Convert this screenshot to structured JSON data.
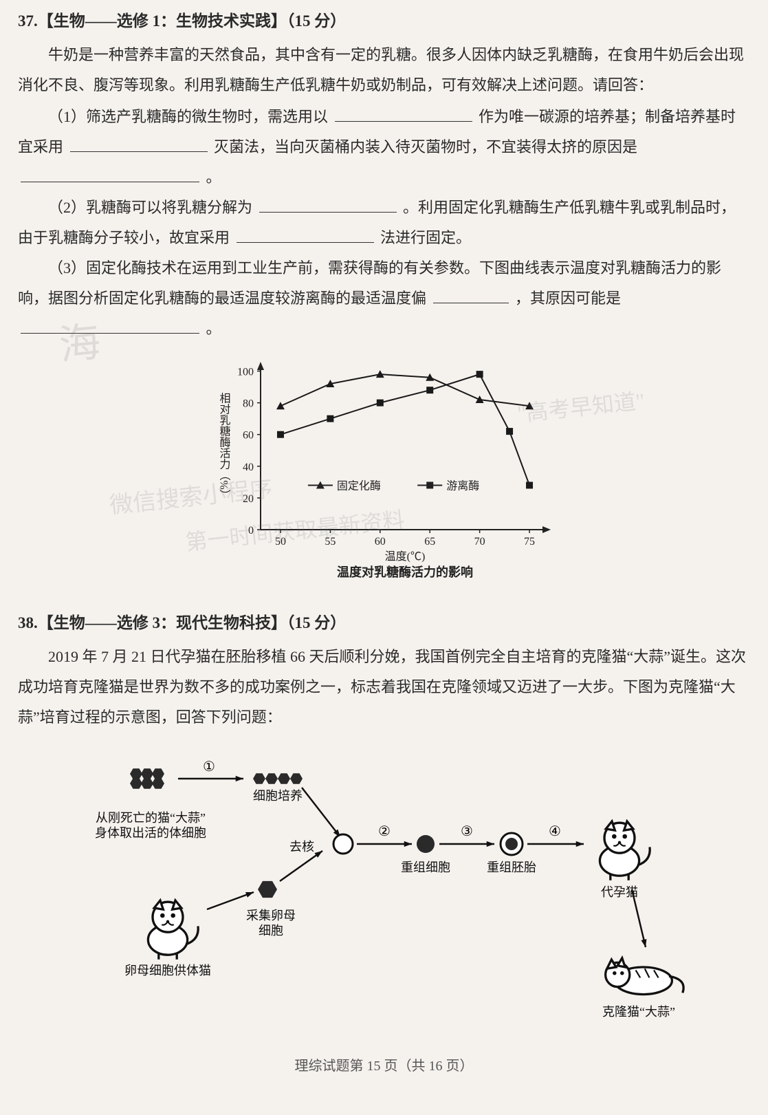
{
  "q37": {
    "header": "37.【生物——选修 1：生物技术实践】（15 分）",
    "p1": "牛奶是一种营养丰富的天然食品，其中含有一定的乳糖。很多人因体内缺乏乳糖酶，在食用牛奶后会出现消化不良、腹泻等现象。利用乳糖酶生产低乳糖牛奶或奶制品，可有效解决上述问题。请回答：",
    "s1a": "（1）筛选产乳糖酶的微生物时，需选用以",
    "s1b": "作为唯一碳源的培养基；制备培养基时宜采用",
    "s1c": "灭菌法，当向灭菌桶内装入待灭菌物时，不宜装得太挤的原因是",
    "s1d": "。",
    "s2a": "（2）乳糖酶可以将乳糖分解为",
    "s2b": "。利用固定化乳糖酶生产低乳糖牛乳或乳制品时，由于乳糖酶分子较小，故宜采用",
    "s2c": "法进行固定。",
    "s3a": "（3）固定化酶技术在运用到工业生产前，需获得酶的有关参数。下图曲线表示温度对乳糖酶活力的影响，据图分析固定化乳糖酶的最适温度较游离酶的最适温度偏",
    "s3b": "，其原因可能是",
    "s3c": "。"
  },
  "chart": {
    "title": "温度对乳糖酶活力的影响",
    "xlabel": "温度(℃)",
    "ylabel": "相对乳糖酶活力（%）",
    "xticks": [
      50,
      55,
      60,
      65,
      70,
      75
    ],
    "yticks": [
      0,
      20,
      40,
      60,
      80,
      100
    ],
    "xlim": [
      48,
      77
    ],
    "ylim": [
      0,
      105
    ],
    "background_color": "#f5f2ee",
    "axis_color": "#222222",
    "series": [
      {
        "name": "固定化酶",
        "marker": "triangle",
        "color": "#1a1a1a",
        "line_width": 2,
        "points": [
          [
            50,
            78
          ],
          [
            55,
            92
          ],
          [
            60,
            98
          ],
          [
            65,
            96
          ],
          [
            70,
            82
          ],
          [
            75,
            78
          ]
        ]
      },
      {
        "name": "游离酶",
        "marker": "square",
        "color": "#1a1a1a",
        "line_width": 2,
        "points": [
          [
            50,
            60
          ],
          [
            55,
            70
          ],
          [
            60,
            80
          ],
          [
            65,
            88
          ],
          [
            70,
            98
          ],
          [
            73,
            62
          ],
          [
            75,
            28
          ]
        ]
      }
    ],
    "legend": {
      "fixed": "固定化酶",
      "free": "游离酶"
    },
    "label_fontsize": 16,
    "tick_fontsize": 16
  },
  "q38": {
    "header": "38.【生物——选修 3：现代生物科技】（15 分）",
    "p1": "2019 年 7 月 21 日代孕猫在胚胎移植 66 天后顺利分娩，我国首例完全自主培育的克隆猫“大蒜”诞生。这次成功培育克隆猫是世界为数不多的成功案例之一，标志着我国在克隆领域又迈进了一大步。下图为克隆猫“大蒜”培育过程的示意图，回答下列问题："
  },
  "diagram": {
    "labels": {
      "dead_body": "从刚死亡的猫“大蒜”\n身体取出活的体细胞",
      "cell_culture": "细胞培养",
      "denucleate": "去核",
      "oocyte_cat": "卵母细胞供体猫",
      "collect_oocyte": "采集卵母\n细胞",
      "recomb_cell": "重组细胞",
      "recomb_embryo": "重组胚胎",
      "surrogate": "代孕猫",
      "clone_cat": "克隆猫“大蒜”",
      "step1": "①",
      "step2": "②",
      "step3": "③",
      "step4": "④"
    },
    "colors": {
      "line": "#111111",
      "fill_dark": "#2a2a2a"
    }
  },
  "watermarks": {
    "wm1": "海",
    "wm2": "\"高考早知道\"",
    "wm3": "微信搜索小程序",
    "wm4": "第一时间获取最新资料"
  },
  "footer": "理综试题第 15 页（共 16 页）"
}
